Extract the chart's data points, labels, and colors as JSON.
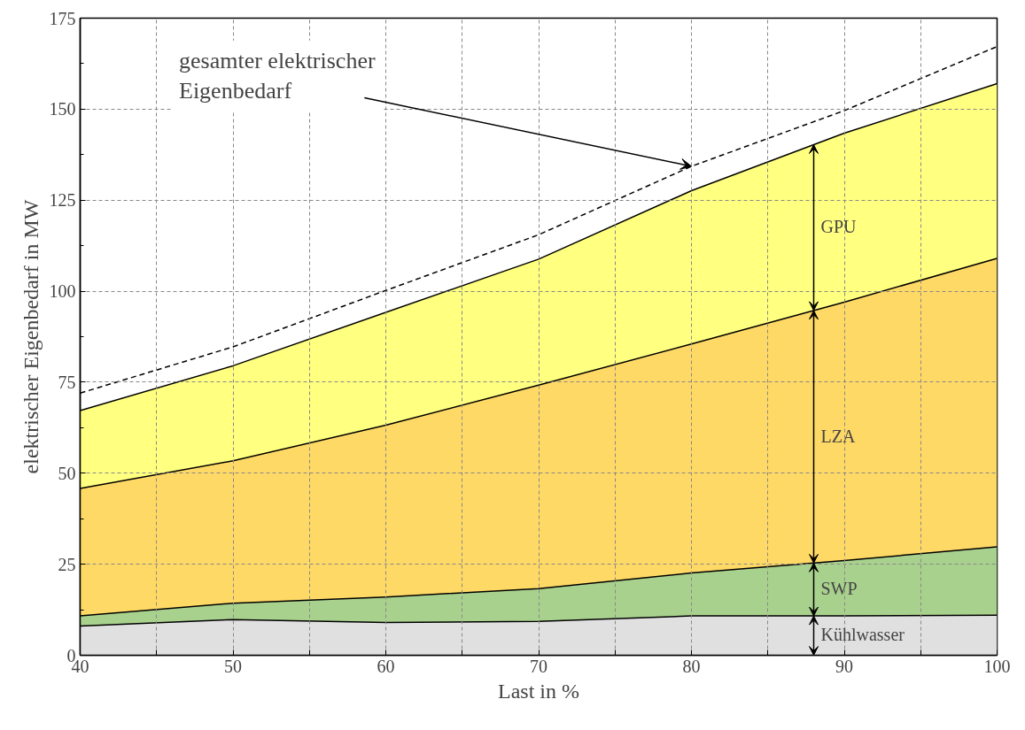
{
  "chart_data": {
    "type": "area",
    "stacked": true,
    "xlabel": "Last in %",
    "ylabel": "elektrischer Eigenbedarf in MW",
    "x": [
      40,
      50,
      60,
      70,
      80,
      90,
      100
    ],
    "series": [
      {
        "name": "Kühlwasser",
        "color": "#e0e0e0",
        "values": [
          8,
          9.8,
          9,
          9.3,
          10.8,
          10.8,
          11
        ]
      },
      {
        "name": "SWP",
        "color": "#a9d18e",
        "values": [
          2.8,
          4.5,
          7,
          9,
          11.8,
          15.2,
          18.8
        ]
      },
      {
        "name": "LZA",
        "color": "#ffd966",
        "values": [
          35,
          39.1,
          47.2,
          55.9,
          62.9,
          71,
          79.2
        ]
      },
      {
        "name": "GPU",
        "color": "#ffff80",
        "values": [
          21.4,
          26.1,
          31,
          34.6,
          42.1,
          46.4,
          48
        ]
      },
      {
        "type": "line",
        "color": "#000000",
        "line_style": "dashed",
        "values": [
          72,
          84.7,
          100.2,
          115.5,
          134.3,
          149.6,
          167.2
        ]
      }
    ],
    "annotations": [
      {
        "text": "gesamter elektrischer\nEigenbedarf",
        "x": 80,
        "y": 134.3
      }
    ],
    "xlim": [
      40,
      100
    ],
    "ylim": [
      0,
      175
    ],
    "xticks": [
      40,
      {
        "value": 45,
        "label": null
      },
      50,
      {
        "value": 55,
        "label": null
      },
      60,
      {
        "value": 65,
        "label": null
      },
      70,
      {
        "value": 75,
        "label": null
      },
      80,
      {
        "value": 85,
        "label": null
      },
      90,
      {
        "value": 95,
        "label": null
      },
      100
    ],
    "yticks": [
      0,
      25,
      50,
      75,
      100,
      125,
      150,
      175
    ],
    "grid": true,
    "legend": "right"
  }
}
